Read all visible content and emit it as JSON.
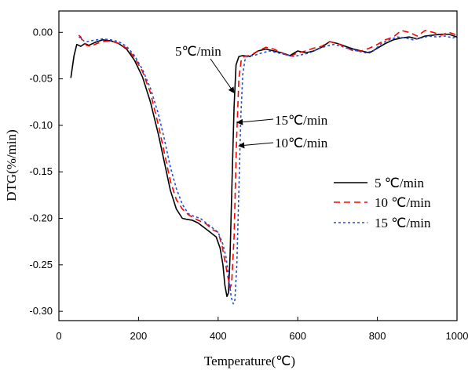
{
  "chart_data": {
    "type": "line",
    "xlabel": "Temperature(℃)",
    "ylabel": "DTG(%/min)",
    "xlim": [
      0,
      1000
    ],
    "ylim": [
      -0.31,
      0.023
    ],
    "xticks": [
      0,
      200,
      400,
      600,
      800,
      1000
    ],
    "yticks": [
      0.0,
      -0.05,
      -0.1,
      -0.15,
      -0.2,
      -0.25,
      -0.3
    ],
    "xtick_labels": [
      "0",
      "200",
      "400",
      "600",
      "800",
      "1000"
    ],
    "ytick_labels": [
      "0.00",
      "-0.05",
      "-0.10",
      "-0.15",
      "-0.20",
      "-0.25",
      "-0.30"
    ],
    "grid": false,
    "legend_position": "right",
    "series": [
      {
        "name": "5 ℃/min",
        "color": "#000000",
        "dash": "solid",
        "points": [
          [
            30,
            -0.049
          ],
          [
            38,
            -0.025
          ],
          [
            45,
            -0.013
          ],
          [
            55,
            -0.015
          ],
          [
            65,
            -0.012
          ],
          [
            75,
            -0.014
          ],
          [
            90,
            -0.011
          ],
          [
            110,
            -0.008
          ],
          [
            130,
            -0.009
          ],
          [
            150,
            -0.012
          ],
          [
            170,
            -0.018
          ],
          [
            190,
            -0.03
          ],
          [
            210,
            -0.048
          ],
          [
            230,
            -0.075
          ],
          [
            250,
            -0.11
          ],
          [
            265,
            -0.14
          ],
          [
            280,
            -0.17
          ],
          [
            295,
            -0.19
          ],
          [
            310,
            -0.2
          ],
          [
            320,
            -0.201
          ],
          [
            335,
            -0.202
          ],
          [
            350,
            -0.205
          ],
          [
            365,
            -0.21
          ],
          [
            380,
            -0.215
          ],
          [
            395,
            -0.22
          ],
          [
            405,
            -0.232
          ],
          [
            412,
            -0.25
          ],
          [
            417,
            -0.272
          ],
          [
            422,
            -0.284
          ],
          [
            426,
            -0.28
          ],
          [
            430,
            -0.24
          ],
          [
            435,
            -0.16
          ],
          [
            440,
            -0.08
          ],
          [
            445,
            -0.035
          ],
          [
            452,
            -0.026
          ],
          [
            462,
            -0.025
          ],
          [
            480,
            -0.026
          ],
          [
            500,
            -0.02
          ],
          [
            520,
            -0.018
          ],
          [
            540,
            -0.02
          ],
          [
            560,
            -0.022
          ],
          [
            580,
            -0.025
          ],
          [
            600,
            -0.02
          ],
          [
            620,
            -0.022
          ],
          [
            640,
            -0.02
          ],
          [
            660,
            -0.016
          ],
          [
            680,
            -0.01
          ],
          [
            700,
            -0.012
          ],
          [
            720,
            -0.015
          ],
          [
            740,
            -0.018
          ],
          [
            760,
            -0.02
          ],
          [
            780,
            -0.022
          ],
          [
            800,
            -0.017
          ],
          [
            820,
            -0.012
          ],
          [
            840,
            -0.008
          ],
          [
            860,
            -0.006
          ],
          [
            880,
            -0.005
          ],
          [
            900,
            -0.007
          ],
          [
            920,
            -0.004
          ],
          [
            940,
            -0.003
          ],
          [
            960,
            -0.002
          ],
          [
            980,
            -0.002
          ],
          [
            1000,
            -0.005
          ]
        ]
      },
      {
        "name": "10 ℃/min",
        "color": "#ff0000",
        "dash": "8,5",
        "points": [
          [
            50,
            -0.003
          ],
          [
            55,
            -0.005
          ],
          [
            60,
            -0.01
          ],
          [
            70,
            -0.014
          ],
          [
            80,
            -0.015
          ],
          [
            95,
            -0.012
          ],
          [
            110,
            -0.01
          ],
          [
            130,
            -0.009
          ],
          [
            150,
            -0.012
          ],
          [
            170,
            -0.017
          ],
          [
            190,
            -0.027
          ],
          [
            210,
            -0.042
          ],
          [
            230,
            -0.065
          ],
          [
            250,
            -0.1
          ],
          [
            265,
            -0.13
          ],
          [
            280,
            -0.16
          ],
          [
            295,
            -0.18
          ],
          [
            310,
            -0.19
          ],
          [
            325,
            -0.196
          ],
          [
            340,
            -0.2
          ],
          [
            355,
            -0.203
          ],
          [
            370,
            -0.206
          ],
          [
            385,
            -0.212
          ],
          [
            400,
            -0.215
          ],
          [
            410,
            -0.23
          ],
          [
            418,
            -0.248
          ],
          [
            424,
            -0.262
          ],
          [
            430,
            -0.275
          ],
          [
            434,
            -0.27
          ],
          [
            440,
            -0.22
          ],
          [
            446,
            -0.12
          ],
          [
            452,
            -0.05
          ],
          [
            458,
            -0.03
          ],
          [
            465,
            -0.026
          ],
          [
            480,
            -0.025
          ],
          [
            500,
            -0.02
          ],
          [
            520,
            -0.016
          ],
          [
            540,
            -0.018
          ],
          [
            560,
            -0.022
          ],
          [
            580,
            -0.026
          ],
          [
            600,
            -0.022
          ],
          [
            620,
            -0.02
          ],
          [
            640,
            -0.017
          ],
          [
            660,
            -0.015
          ],
          [
            680,
            -0.01
          ],
          [
            700,
            -0.012
          ],
          [
            720,
            -0.016
          ],
          [
            740,
            -0.02
          ],
          [
            760,
            -0.02
          ],
          [
            780,
            -0.017
          ],
          [
            800,
            -0.013
          ],
          [
            820,
            -0.008
          ],
          [
            840,
            -0.005
          ],
          [
            860,
            0.002
          ],
          [
            880,
            0.0
          ],
          [
            900,
            -0.004
          ],
          [
            920,
            0.002
          ],
          [
            940,
            0.0
          ],
          [
            960,
            -0.003
          ],
          [
            980,
            0.0
          ],
          [
            1000,
            -0.003
          ]
        ]
      },
      {
        "name": "15 ℃/min",
        "color": "#1f4fd8",
        "dash": "3,3",
        "points": [
          [
            50,
            -0.005
          ],
          [
            55,
            -0.006
          ],
          [
            62,
            -0.009
          ],
          [
            70,
            -0.01
          ],
          [
            80,
            -0.009
          ],
          [
            95,
            -0.008
          ],
          [
            110,
            -0.007
          ],
          [
            130,
            -0.008
          ],
          [
            150,
            -0.01
          ],
          [
            170,
            -0.015
          ],
          [
            190,
            -0.025
          ],
          [
            210,
            -0.04
          ],
          [
            230,
            -0.06
          ],
          [
            250,
            -0.088
          ],
          [
            265,
            -0.115
          ],
          [
            280,
            -0.145
          ],
          [
            295,
            -0.168
          ],
          [
            310,
            -0.185
          ],
          [
            325,
            -0.195
          ],
          [
            340,
            -0.198
          ],
          [
            355,
            -0.2
          ],
          [
            370,
            -0.205
          ],
          [
            385,
            -0.21
          ],
          [
            400,
            -0.215
          ],
          [
            412,
            -0.228
          ],
          [
            420,
            -0.242
          ],
          [
            427,
            -0.265
          ],
          [
            433,
            -0.285
          ],
          [
            438,
            -0.292
          ],
          [
            442,
            -0.288
          ],
          [
            447,
            -0.25
          ],
          [
            452,
            -0.17
          ],
          [
            457,
            -0.09
          ],
          [
            462,
            -0.045
          ],
          [
            467,
            -0.03
          ],
          [
            475,
            -0.025
          ],
          [
            490,
            -0.025
          ],
          [
            510,
            -0.022
          ],
          [
            530,
            -0.02
          ],
          [
            550,
            -0.022
          ],
          [
            570,
            -0.024
          ],
          [
            590,
            -0.026
          ],
          [
            610,
            -0.024
          ],
          [
            630,
            -0.022
          ],
          [
            650,
            -0.018
          ],
          [
            670,
            -0.015
          ],
          [
            690,
            -0.013
          ],
          [
            710,
            -0.015
          ],
          [
            730,
            -0.018
          ],
          [
            750,
            -0.02
          ],
          [
            770,
            -0.022
          ],
          [
            790,
            -0.02
          ],
          [
            810,
            -0.012
          ],
          [
            830,
            -0.008
          ],
          [
            850,
            -0.005
          ],
          [
            870,
            -0.006
          ],
          [
            890,
            -0.008
          ],
          [
            910,
            -0.006
          ],
          [
            930,
            -0.004
          ],
          [
            950,
            -0.005
          ],
          [
            970,
            -0.004
          ],
          [
            990,
            -0.006
          ],
          [
            1000,
            -0.004
          ]
        ]
      }
    ],
    "annotations": [
      {
        "text": "5℃/min",
        "target": [
          440,
          -0.065
        ]
      },
      {
        "text": "15℃/min",
        "target": [
          448,
          -0.097
        ]
      },
      {
        "text": "10℃/min",
        "target": [
          452,
          -0.122
        ]
      }
    ]
  }
}
